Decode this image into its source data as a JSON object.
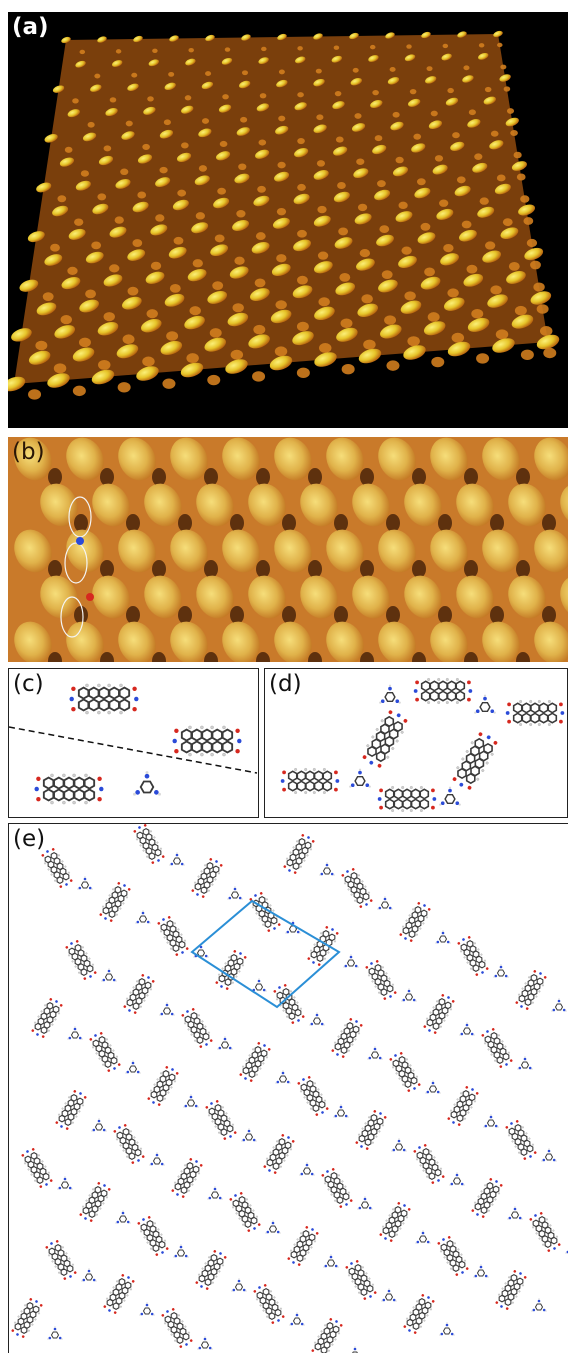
{
  "figure": {
    "panels": [
      {
        "id": "a",
        "label": "(a)",
        "kind": "3D STM topography of a molecular lattice"
      },
      {
        "id": "b",
        "label": "(b)",
        "kind": "high-resolution STM image with overlaid molecular models"
      },
      {
        "id": "c",
        "label": "(c)",
        "kind": "individual molecules"
      },
      {
        "id": "d",
        "label": "(d)",
        "kind": "hydrogen-bonded network motif"
      },
      {
        "id": "e",
        "label": "(e)",
        "kind": "extended network model with unit cell"
      }
    ],
    "colors": {
      "stm_bright": "#f4e23a",
      "stm_mid": "#d07d1e",
      "stm_dark": "#3a1a05",
      "carbon": "#4a4a4a",
      "nitrogen": "#2b4bd8",
      "oxygen": "#d6281f",
      "hydrogen": "#e8e8e8",
      "unit_cell": "#2b8fd6"
    }
  }
}
